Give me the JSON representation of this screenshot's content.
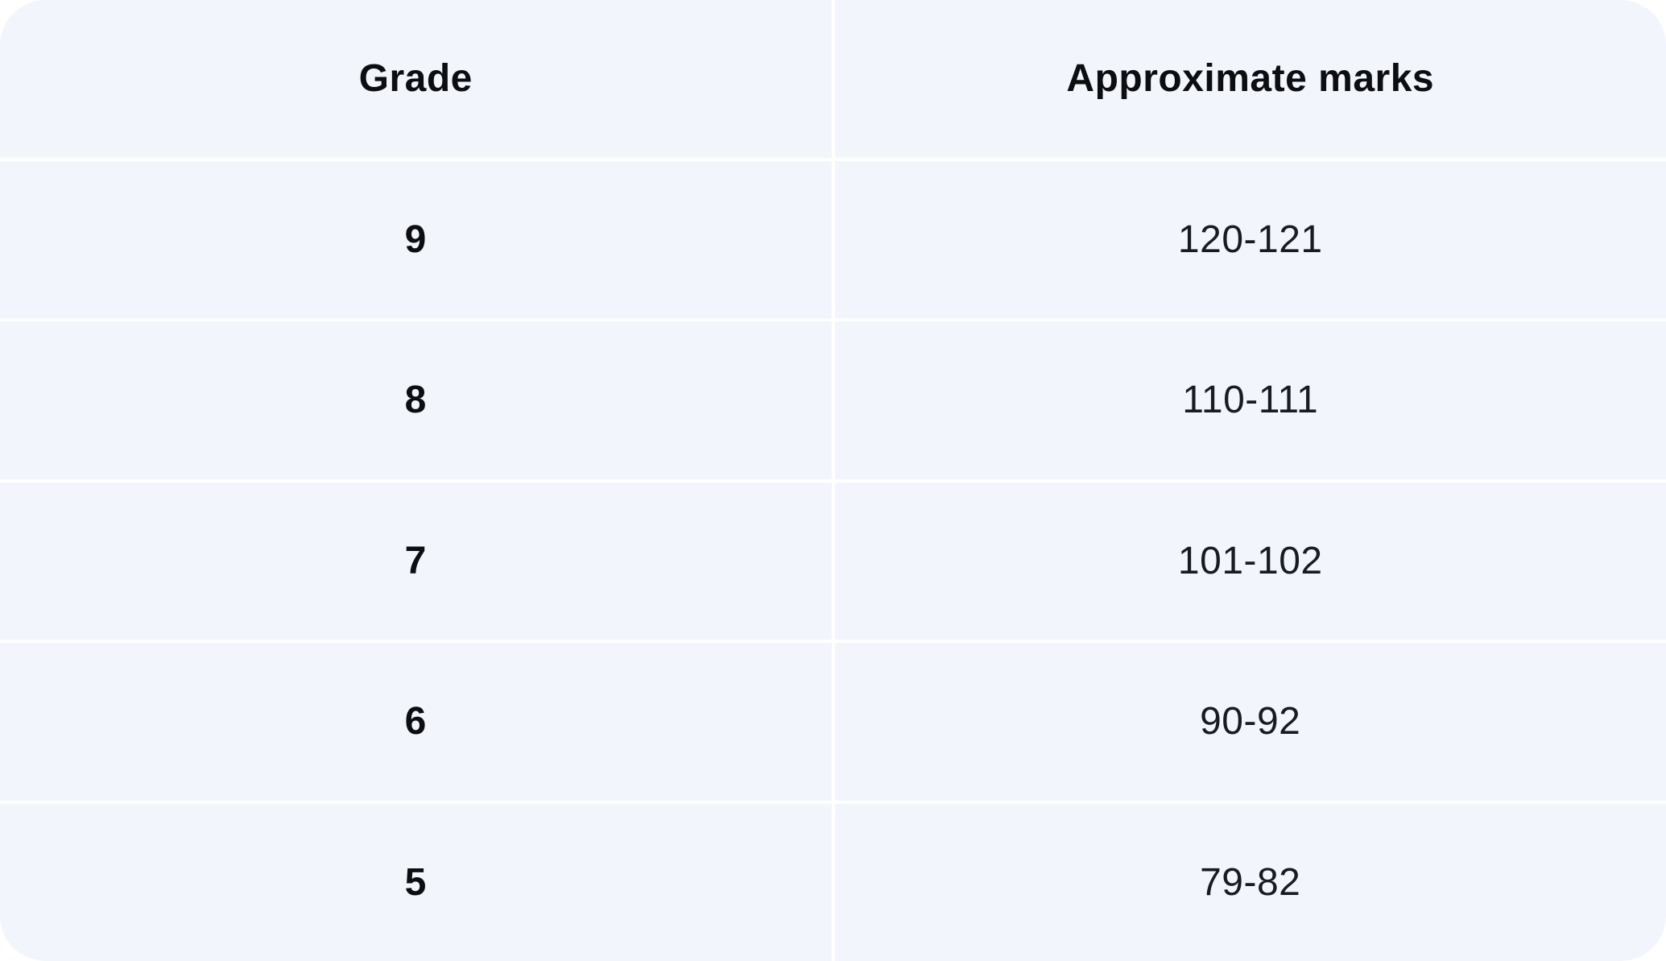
{
  "table": {
    "columns": [
      {
        "label": "Grade"
      },
      {
        "label": "Approximate marks"
      }
    ],
    "rows": [
      {
        "grade": "9",
        "marks": "120-121"
      },
      {
        "grade": "8",
        "marks": "110-111"
      },
      {
        "grade": "7",
        "marks": "101-102"
      },
      {
        "grade": "6",
        "marks": "90-92"
      },
      {
        "grade": "5",
        "marks": "79-82"
      }
    ]
  },
  "colors": {
    "cell_background": "#f2f6fc",
    "gridline": "#ffffff",
    "header_text": "#0d0e12",
    "value_text": "#181b21",
    "page_background": "#ffffff"
  }
}
